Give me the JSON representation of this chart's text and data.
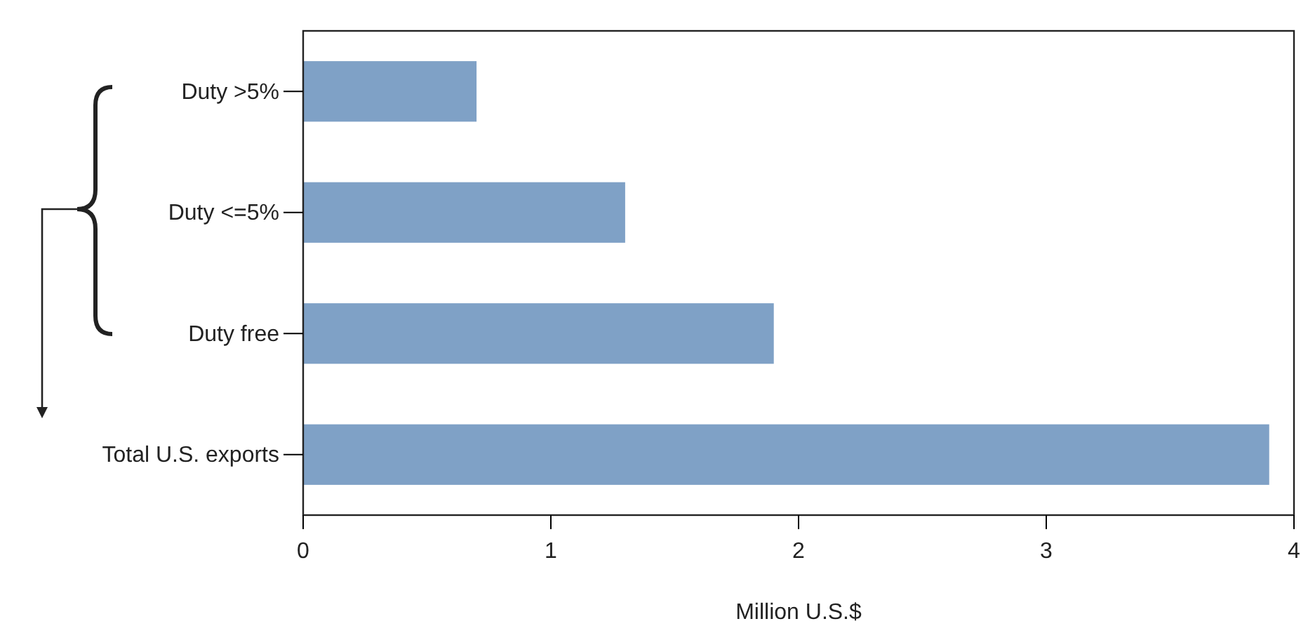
{
  "chart_data": {
    "type": "bar",
    "orientation": "horizontal",
    "xlabel": "Million U.S.$",
    "categories": [
      "Duty >5%",
      "Duty <=5%",
      "Duty free",
      "Total U.S. exports"
    ],
    "values": [
      0.7,
      1.3,
      1.9,
      3.9
    ],
    "color": "#7fa1c6",
    "xlim": [
      0,
      4
    ],
    "xticks": [
      0,
      1,
      2,
      3,
      4
    ],
    "grid": false
  }
}
